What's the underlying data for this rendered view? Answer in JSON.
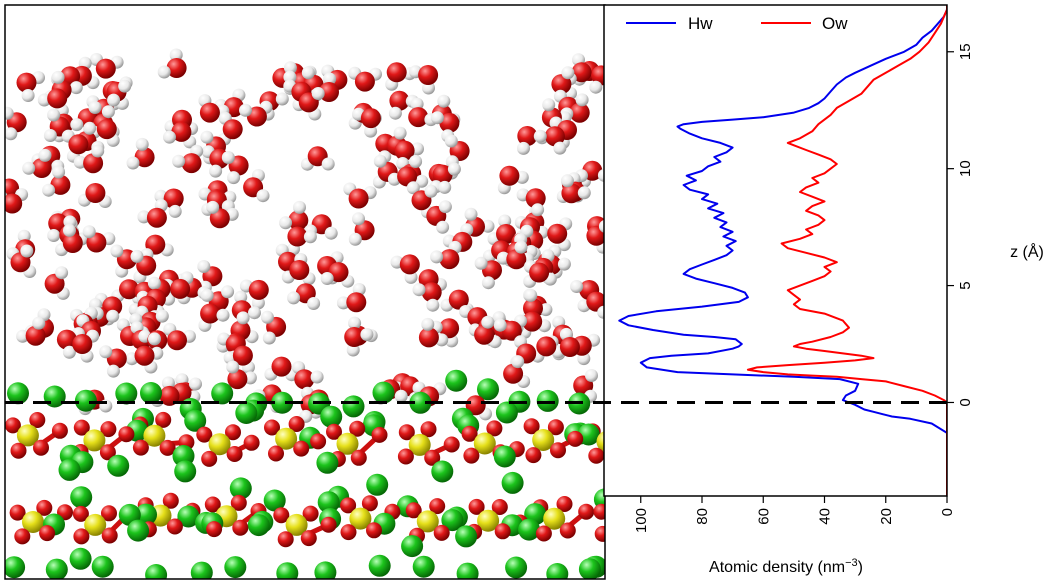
{
  "chart_data": {
    "type": "line",
    "orientation": "horizontal-density-vs-vertical-z",
    "xlabel": "Atomic density (nm",
    "xlabel_exponent": "−3",
    "xlabel_close": ")",
    "ylabel": "z (Å)",
    "xlim": [
      0,
      112
    ],
    "x_inverted": true,
    "ylim": [
      -4,
      17
    ],
    "x_ticks": [
      0,
      20,
      40,
      60,
      80,
      100
    ],
    "x_tick_labels": [
      "0",
      "20",
      "40",
      "60",
      "80",
      "100"
    ],
    "y_ticks": [
      0,
      5,
      10,
      15
    ],
    "y_tick_labels": [
      "0",
      "5",
      "10",
      "15"
    ],
    "grid": false,
    "legend_position": "top",
    "reference_line": {
      "axis": "z",
      "value": 0,
      "style": "dashed",
      "color": "#000000"
    },
    "series": [
      {
        "name": "Hw",
        "color": "#0000ee",
        "points": [
          [
            0,
            -4.0
          ],
          [
            0,
            -2.0
          ],
          [
            0,
            -1.3
          ],
          [
            5,
            -0.9
          ],
          [
            12,
            -0.7
          ],
          [
            18,
            -0.6
          ],
          [
            21,
            -0.5
          ],
          [
            24,
            -0.4
          ],
          [
            27,
            -0.3
          ],
          [
            30,
            -0.1
          ],
          [
            32,
            0.0
          ],
          [
            34,
            0.1
          ],
          [
            33,
            0.3
          ],
          [
            30,
            0.5
          ],
          [
            29,
            0.8
          ],
          [
            35,
            1.0
          ],
          [
            50,
            1.1
          ],
          [
            70,
            1.2
          ],
          [
            88,
            1.3
          ],
          [
            98,
            1.5
          ],
          [
            100,
            1.7
          ],
          [
            97,
            1.9
          ],
          [
            90,
            2.0
          ],
          [
            78,
            2.1
          ],
          [
            70,
            2.3
          ],
          [
            68,
            2.4
          ],
          [
            67,
            2.5
          ],
          [
            69,
            2.7
          ],
          [
            76,
            2.8
          ],
          [
            86,
            2.9
          ],
          [
            96,
            3.1
          ],
          [
            104,
            3.3
          ],
          [
            107,
            3.5
          ],
          [
            104,
            3.7
          ],
          [
            95,
            3.9
          ],
          [
            80,
            4.1
          ],
          [
            68,
            4.3
          ],
          [
            65,
            4.5
          ],
          [
            66,
            4.7
          ],
          [
            70,
            4.9
          ],
          [
            76,
            5.1
          ],
          [
            82,
            5.3
          ],
          [
            86,
            5.5
          ],
          [
            84,
            5.7
          ],
          [
            80,
            5.9
          ],
          [
            76,
            6.1
          ],
          [
            72,
            6.3
          ],
          [
            70,
            6.5
          ],
          [
            72,
            6.7
          ],
          [
            69,
            6.9
          ],
          [
            73,
            7.1
          ],
          [
            70,
            7.3
          ],
          [
            74,
            7.5
          ],
          [
            72,
            7.7
          ],
          [
            76,
            7.9
          ],
          [
            73,
            8.1
          ],
          [
            78,
            8.3
          ],
          [
            75,
            8.5
          ],
          [
            80,
            8.7
          ],
          [
            78,
            8.9
          ],
          [
            84,
            9.1
          ],
          [
            86,
            9.3
          ],
          [
            82,
            9.5
          ],
          [
            85,
            9.7
          ],
          [
            80,
            9.9
          ],
          [
            78,
            10.1
          ],
          [
            74,
            10.3
          ],
          [
            76,
            10.5
          ],
          [
            72,
            10.7
          ],
          [
            70,
            10.9
          ],
          [
            74,
            11.1
          ],
          [
            80,
            11.3
          ],
          [
            84,
            11.5
          ],
          [
            87,
            11.7
          ],
          [
            88,
            11.8
          ],
          [
            86,
            11.9
          ],
          [
            80,
            12.0
          ],
          [
            70,
            12.1
          ],
          [
            60,
            12.2
          ],
          [
            50,
            12.4
          ],
          [
            45,
            12.6
          ],
          [
            42,
            12.8
          ],
          [
            40,
            13.0
          ],
          [
            38,
            13.3
          ],
          [
            36,
            13.6
          ],
          [
            33,
            13.9
          ],
          [
            30,
            14.1
          ],
          [
            25,
            14.4
          ],
          [
            20,
            14.7
          ],
          [
            14,
            15.0
          ],
          [
            10,
            15.3
          ],
          [
            8,
            15.6
          ],
          [
            5,
            15.9
          ],
          [
            3,
            16.2
          ],
          [
            1,
            16.5
          ],
          [
            0,
            16.8
          ],
          [
            0,
            17.0
          ]
        ]
      },
      {
        "name": "Ow",
        "color": "#ff0000",
        "points": [
          [
            0,
            -4.0
          ],
          [
            0,
            -0.5
          ],
          [
            0,
            0.0
          ],
          [
            1,
            0.1
          ],
          [
            4,
            0.3
          ],
          [
            8,
            0.5
          ],
          [
            14,
            0.7
          ],
          [
            20,
            0.9
          ],
          [
            28,
            1.0
          ],
          [
            36,
            1.1
          ],
          [
            44,
            1.15
          ],
          [
            52,
            1.2
          ],
          [
            60,
            1.3
          ],
          [
            65,
            1.4
          ],
          [
            62,
            1.5
          ],
          [
            52,
            1.6
          ],
          [
            40,
            1.7
          ],
          [
            30,
            1.8
          ],
          [
            24,
            1.9
          ],
          [
            28,
            2.0
          ],
          [
            34,
            2.1
          ],
          [
            40,
            2.2
          ],
          [
            46,
            2.3
          ],
          [
            50,
            2.4
          ],
          [
            48,
            2.5
          ],
          [
            44,
            2.6
          ],
          [
            38,
            2.8
          ],
          [
            34,
            3.0
          ],
          [
            32,
            3.2
          ],
          [
            34,
            3.5
          ],
          [
            40,
            3.8
          ],
          [
            48,
            4.0
          ],
          [
            50,
            4.2
          ],
          [
            48,
            4.4
          ],
          [
            50,
            4.6
          ],
          [
            52,
            4.8
          ],
          [
            48,
            5.0
          ],
          [
            44,
            5.2
          ],
          [
            40,
            5.4
          ],
          [
            38,
            5.6
          ],
          [
            40,
            5.8
          ],
          [
            36,
            6.0
          ],
          [
            40,
            6.2
          ],
          [
            46,
            6.4
          ],
          [
            52,
            6.6
          ],
          [
            54,
            6.8
          ],
          [
            48,
            7.0
          ],
          [
            44,
            7.2
          ],
          [
            46,
            7.4
          ],
          [
            42,
            7.6
          ],
          [
            40,
            7.8
          ],
          [
            42,
            8.0
          ],
          [
            46,
            8.2
          ],
          [
            44,
            8.4
          ],
          [
            40,
            8.6
          ],
          [
            44,
            8.8
          ],
          [
            48,
            9.0
          ],
          [
            46,
            9.2
          ],
          [
            42,
            9.4
          ],
          [
            44,
            9.6
          ],
          [
            40,
            9.8
          ],
          [
            38,
            10.0
          ],
          [
            36,
            10.2
          ],
          [
            38,
            10.4
          ],
          [
            42,
            10.6
          ],
          [
            46,
            10.8
          ],
          [
            50,
            11.0
          ],
          [
            52,
            11.1
          ],
          [
            48,
            11.3
          ],
          [
            44,
            11.6
          ],
          [
            42,
            11.9
          ],
          [
            40,
            12.1
          ],
          [
            38,
            12.3
          ],
          [
            36,
            12.6
          ],
          [
            32,
            12.9
          ],
          [
            28,
            13.2
          ],
          [
            26,
            13.5
          ],
          [
            24,
            13.8
          ],
          [
            20,
            14.1
          ],
          [
            16,
            14.4
          ],
          [
            12,
            14.7
          ],
          [
            9,
            15.0
          ],
          [
            6,
            15.4
          ],
          [
            4,
            15.8
          ],
          [
            2,
            16.2
          ],
          [
            1,
            16.5
          ],
          [
            0,
            16.8
          ],
          [
            0,
            17.0
          ]
        ]
      }
    ]
  },
  "molecular_image": {
    "colors": {
      "oxygen": "#e01818",
      "hydrogen": "#f2f2f2",
      "chlorine": "#1cc41c",
      "sulfur": "#e6e01a",
      "bond_o": "#cc1010",
      "bond_h": "#e4e4e4",
      "bond_s": "#dcd418"
    }
  }
}
